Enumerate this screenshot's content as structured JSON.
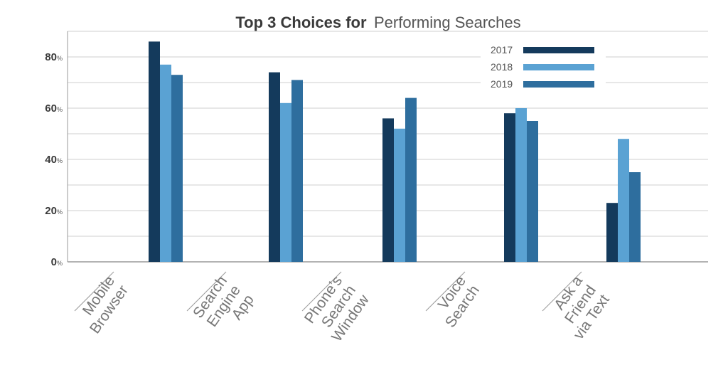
{
  "colors": {
    "series": [
      "#143a5c",
      "#5aa2d3",
      "#2e6e9e"
    ],
    "grid": "#cfcfcf",
    "axis": "#9a9a9a",
    "text": "#3a3a3a"
  },
  "chart_data": {
    "type": "bar",
    "title_bold": "Top 3 Choices for",
    "title_light": "Performing Searches",
    "categories": [
      [
        "Mobile",
        "Browser"
      ],
      [
        "Search",
        "Engine",
        "App"
      ],
      [
        "Phone’s",
        "Search",
        "Window"
      ],
      [
        "Voice",
        "Search"
      ],
      [
        "Ask a",
        "Friend",
        "via Text"
      ]
    ],
    "series": [
      {
        "name": "2017",
        "values": [
          86,
          74,
          56,
          58,
          23
        ]
      },
      {
        "name": "2018",
        "values": [
          77,
          62,
          52,
          60,
          48
        ]
      },
      {
        "name": "2019",
        "values": [
          73,
          71,
          64,
          55,
          35
        ]
      }
    ],
    "y_ticks": [
      {
        "num": "0",
        "unit": "%",
        "value": 0
      },
      {
        "num": "20",
        "unit": "%",
        "value": 20
      },
      {
        "num": "40",
        "unit": "%",
        "value": 40
      },
      {
        "num": "60",
        "unit": "%",
        "value": 60
      },
      {
        "num": "80",
        "unit": "%",
        "value": 80
      }
    ],
    "gridline_step": 10,
    "ylim": [
      0,
      90
    ],
    "xlabel": "",
    "ylabel": "",
    "legend_position": "top-right",
    "grid": true
  }
}
